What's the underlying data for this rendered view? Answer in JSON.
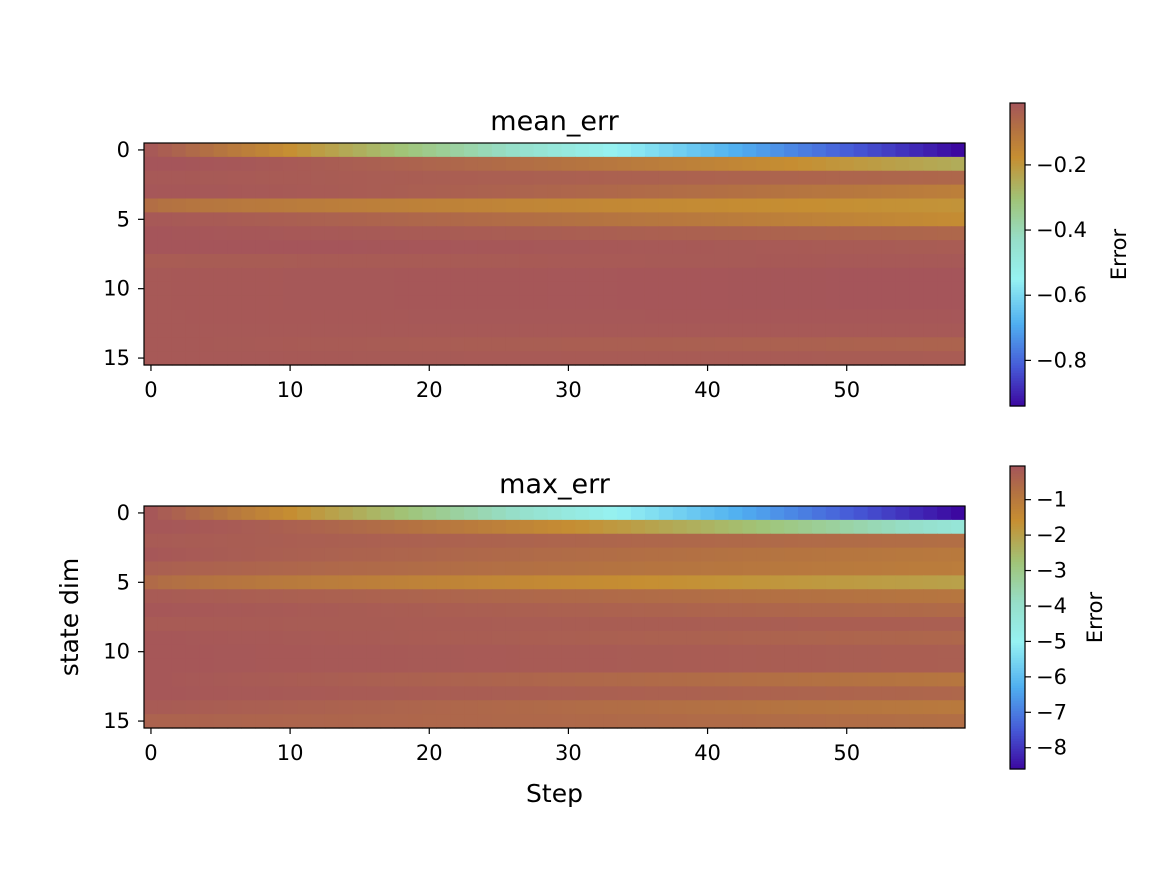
{
  "chart_data": [
    {
      "type": "heatmap",
      "title": "mean_err",
      "xlabel": "",
      "ylabel": "",
      "x_ticks": [
        "0",
        "10",
        "20",
        "30",
        "40",
        "50"
      ],
      "y_ticks": [
        "0",
        "5",
        "10",
        "15"
      ],
      "xlim": [
        -0.5,
        58.5
      ],
      "ylim": [
        15.5,
        -0.5
      ],
      "n_steps": 59,
      "n_dims": 16,
      "colorbar": {
        "label": "Error",
        "ticks": [
          "−0.2",
          "−0.4",
          "−0.6",
          "−0.8"
        ],
        "tick_values": [
          -0.2,
          -0.4,
          -0.6,
          -0.8
        ],
        "range": [
          -0.94,
          -0.01
        ]
      },
      "rows": [
        {
          "dim": 0,
          "start": -0.02,
          "end": -0.94,
          "shape": 1.0
        },
        {
          "dim": 1,
          "start": -0.01,
          "end": -0.25,
          "shape": 1.6
        },
        {
          "dim": 2,
          "start": -0.02,
          "end": -0.06,
          "shape": 1.0
        },
        {
          "dim": 3,
          "start": -0.015,
          "end": -0.13,
          "shape": 1.5
        },
        {
          "dim": 4,
          "start": -0.08,
          "end": -0.19,
          "shape": 0.6
        },
        {
          "dim": 5,
          "start": -0.02,
          "end": -0.17,
          "shape": 1.2
        },
        {
          "dim": 6,
          "start": -0.01,
          "end": -0.06,
          "shape": 1.0
        },
        {
          "dim": 7,
          "start": -0.005,
          "end": -0.03,
          "shape": 1.0
        },
        {
          "dim": 8,
          "start": -0.03,
          "end": -0.02,
          "shape": 1.0
        },
        {
          "dim": 9,
          "start": -0.02,
          "end": -0.01,
          "shape": 1.0
        },
        {
          "dim": 10,
          "start": -0.02,
          "end": -0.01,
          "shape": 1.0
        },
        {
          "dim": 11,
          "start": -0.02,
          "end": -0.01,
          "shape": 1.0
        },
        {
          "dim": 12,
          "start": -0.02,
          "end": -0.015,
          "shape": 1.0
        },
        {
          "dim": 13,
          "start": -0.02,
          "end": -0.02,
          "shape": 1.0
        },
        {
          "dim": 14,
          "start": -0.02,
          "end": -0.05,
          "shape": 1.0
        },
        {
          "dim": 15,
          "start": -0.02,
          "end": -0.03,
          "shape": 1.0
        }
      ]
    },
    {
      "type": "heatmap",
      "title": "max_err",
      "xlabel": "Step",
      "ylabel": "state dim",
      "x_ticks": [
        "0",
        "10",
        "20",
        "30",
        "40",
        "50"
      ],
      "y_ticks": [
        "0",
        "5",
        "10",
        "15"
      ],
      "xlim": [
        -0.5,
        58.5
      ],
      "ylim": [
        15.5,
        -0.5
      ],
      "n_steps": 59,
      "n_dims": 16,
      "colorbar": {
        "label": "Error",
        "ticks": [
          "−1",
          "−2",
          "−3",
          "−4",
          "−5",
          "−6",
          "−7",
          "−8"
        ],
        "tick_values": [
          -1,
          -2,
          -3,
          -4,
          -5,
          -6,
          -7,
          -8
        ],
        "range": [
          -8.6,
          -0.05
        ]
      },
      "rows": [
        {
          "dim": 0,
          "start": -0.1,
          "end": -8.6,
          "shape": 1.0
        },
        {
          "dim": 1,
          "start": -0.1,
          "end": -4.3,
          "shape": 1.6
        },
        {
          "dim": 2,
          "start": -0.2,
          "end": -0.7,
          "shape": 1.0
        },
        {
          "dim": 3,
          "start": -0.1,
          "end": -1.0,
          "shape": 0.8
        },
        {
          "dim": 4,
          "start": -0.3,
          "end": -1.1,
          "shape": 0.8
        },
        {
          "dim": 5,
          "start": -0.6,
          "end": -2.0,
          "shape": 0.7
        },
        {
          "dim": 6,
          "start": -0.2,
          "end": -0.9,
          "shape": 1.0
        },
        {
          "dim": 7,
          "start": -0.1,
          "end": -0.6,
          "shape": 1.0
        },
        {
          "dim": 8,
          "start": -0.2,
          "end": -0.3,
          "shape": 1.0
        },
        {
          "dim": 9,
          "start": -0.1,
          "end": -0.5,
          "shape": 1.0
        },
        {
          "dim": 10,
          "start": -0.1,
          "end": -0.3,
          "shape": 1.0
        },
        {
          "dim": 11,
          "start": -0.1,
          "end": -0.3,
          "shape": 1.0
        },
        {
          "dim": 12,
          "start": -0.1,
          "end": -0.9,
          "shape": 1.0
        },
        {
          "dim": 13,
          "start": -0.1,
          "end": -0.5,
          "shape": 1.0
        },
        {
          "dim": 14,
          "start": -0.2,
          "end": -1.0,
          "shape": 1.0
        },
        {
          "dim": 15,
          "start": -0.4,
          "end": -0.7,
          "shape": 1.0
        }
      ]
    }
  ]
}
